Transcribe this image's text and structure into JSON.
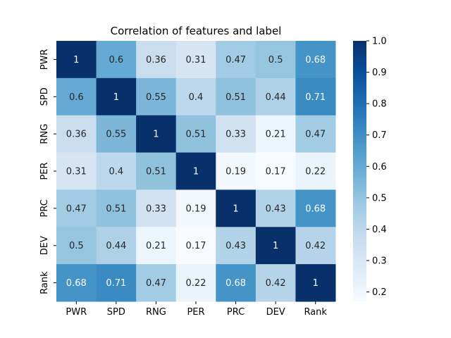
{
  "chart_data": {
    "type": "heatmap",
    "title": "Correlation of features and label",
    "x_labels": [
      "PWR",
      "SPD",
      "RNG",
      "PER",
      "PRC",
      "DEV",
      "Rank"
    ],
    "y_labels": [
      "PWR",
      "SPD",
      "RNG",
      "PER",
      "PRC",
      "DEV",
      "Rank"
    ],
    "values": [
      [
        1,
        0.6,
        0.36,
        0.31,
        0.47,
        0.5,
        0.68
      ],
      [
        0.6,
        1,
        0.55,
        0.4,
        0.51,
        0.44,
        0.71
      ],
      [
        0.36,
        0.55,
        1,
        0.51,
        0.33,
        0.21,
        0.47
      ],
      [
        0.31,
        0.4,
        0.51,
        1,
        0.19,
        0.17,
        0.22
      ],
      [
        0.47,
        0.51,
        0.33,
        0.19,
        1,
        0.43,
        0.68
      ],
      [
        0.5,
        0.44,
        0.21,
        0.17,
        0.43,
        1,
        0.42
      ],
      [
        0.68,
        0.71,
        0.47,
        0.22,
        0.68,
        0.42,
        1
      ]
    ],
    "colormap": "Blues",
    "vmin": 0.17,
    "vmax": 1.0,
    "colorbar_ticks": [
      "0.2",
      "0.3",
      "0.4",
      "0.5",
      "0.6",
      "0.7",
      "0.8",
      "0.9",
      "1.0"
    ],
    "annotations": true
  }
}
